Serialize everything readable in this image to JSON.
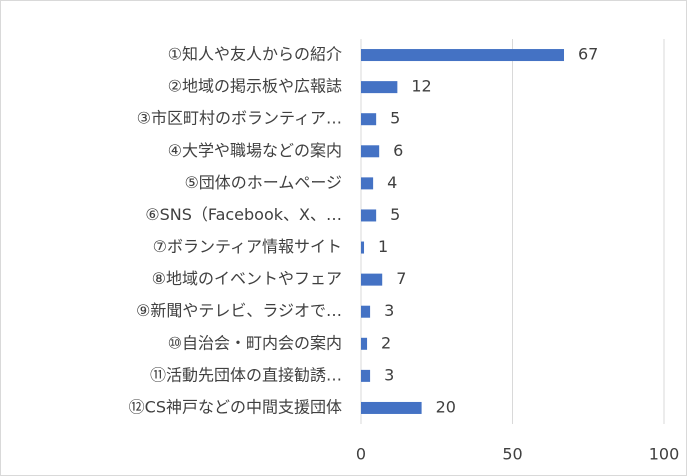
{
  "chart_data": {
    "type": "bar",
    "orientation": "horizontal",
    "categories": [
      "①知人や友人からの紹介",
      "②地域の掲示板や広報誌",
      "③市区町村のボランティア…",
      "④大学や職場などの案内",
      "⑤団体のホームページ",
      "⑥SNS（Facebook、X、…",
      "⑦ボランティア情報サイト",
      "⑧地域のイベントやフェア",
      "⑨新聞やテレビ、ラジオで…",
      "⑩自治会・町内会の案内",
      "⑪活動先団体の直接勧誘…",
      "⑫CS神戸などの中間支援団体"
    ],
    "values": [
      67,
      12,
      5,
      6,
      4,
      5,
      1,
      7,
      3,
      2,
      3,
      20
    ],
    "color": "#4472c4",
    "xlim": [
      0,
      100
    ],
    "xticks": [
      0,
      50,
      100
    ],
    "grid": true
  }
}
